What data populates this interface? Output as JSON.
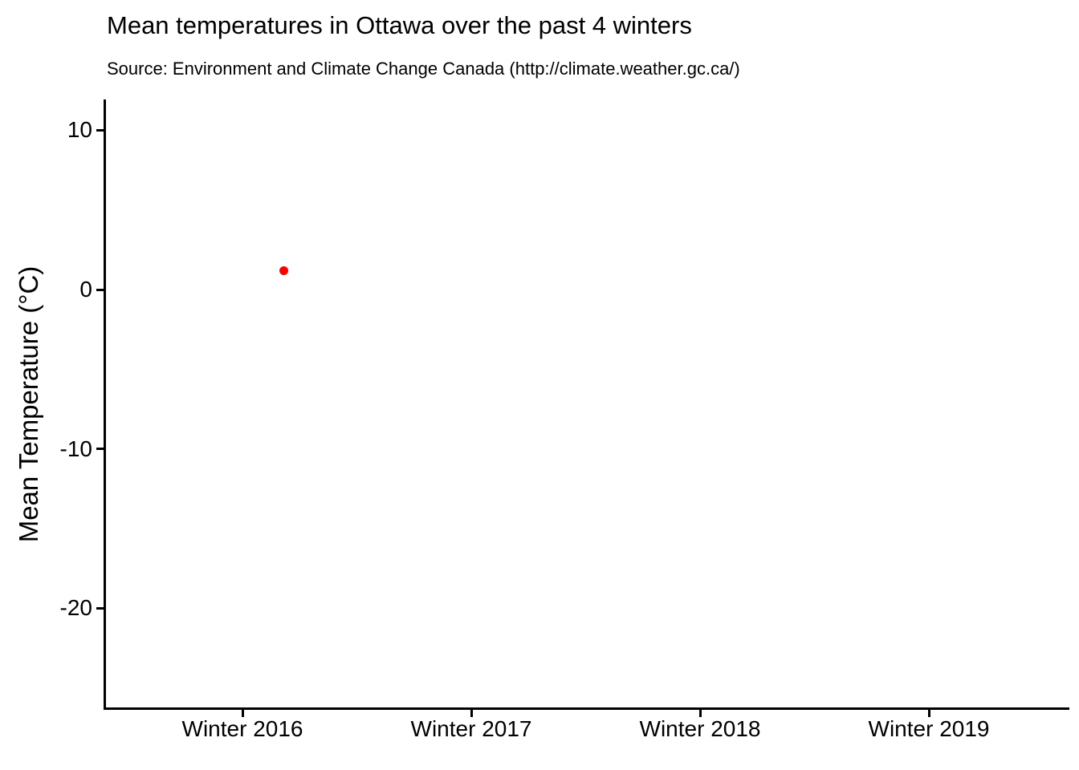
{
  "chart_data": {
    "type": "scatter",
    "title": "Mean temperatures in Ottawa over the past 4 winters",
    "subtitle": "Source: Environment and Climate Change Canada (http://climate.weather.gc.ca/)",
    "xlabel": "",
    "ylabel": "Mean Temperature (°C)",
    "x_tick_labels": [
      "Winter 2016",
      "Winter 2017",
      "Winter 2018",
      "Winter 2019"
    ],
    "y_ticks": [
      10,
      0,
      -10,
      -20
    ],
    "ylim": [
      -26.3,
      11.9
    ],
    "grid": false,
    "legend": false,
    "background_color": "#ffffff",
    "axis_color": "#000000",
    "point_color": "#ff0000",
    "points": [
      {
        "x_label": "Winter 2016",
        "x_index": 0.18,
        "y": 1.2
      }
    ]
  }
}
